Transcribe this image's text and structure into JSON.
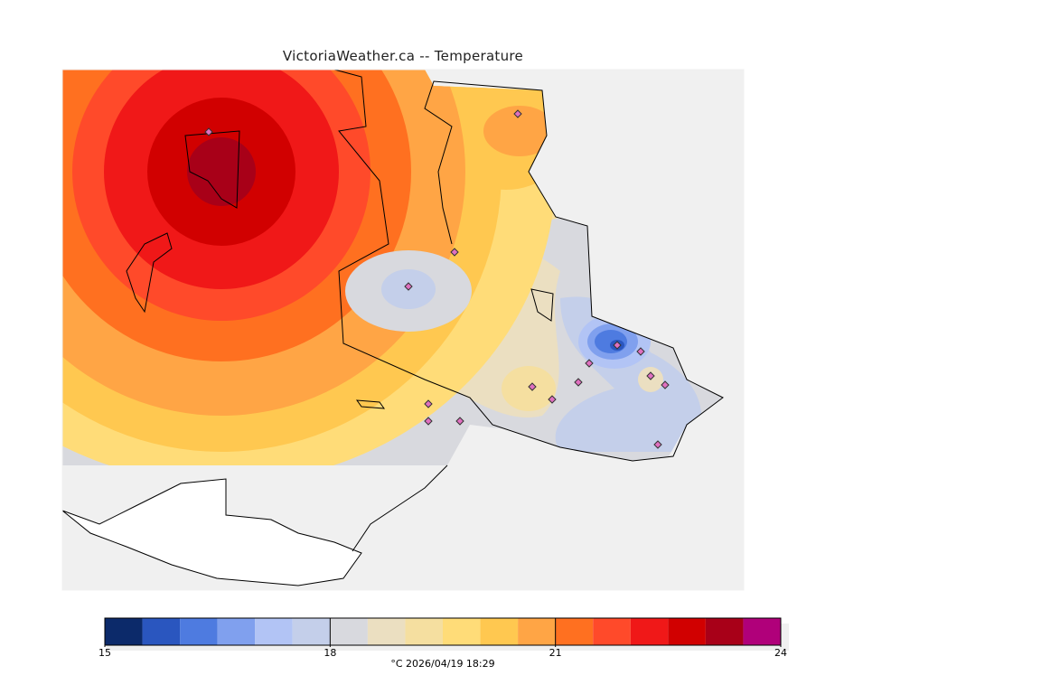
{
  "title": "VictoriaWeather.ca -- Temperature",
  "colorbar": {
    "min": 15,
    "max": 24,
    "step": 0.5,
    "tick_labels": [
      "15",
      "18",
      "21",
      "24"
    ],
    "tick_values": [
      15,
      18,
      21,
      24
    ],
    "colors": [
      "#0c2a6a",
      "#2a56bf",
      "#4e7be0",
      "#80a0ee",
      "#b2c4f5",
      "#c4cfea",
      "#d8d9de",
      "#ebdfc1",
      "#f5dfa0",
      "#ffdc78",
      "#ffc850",
      "#ffa545",
      "#ff7020",
      "#ff4a2a",
      "#f01818",
      "#d10000",
      "#a80018",
      "#b0007a"
    ],
    "units_timestamp": "°C  2026/04/19 18:29"
  },
  "stations_count": 15
}
